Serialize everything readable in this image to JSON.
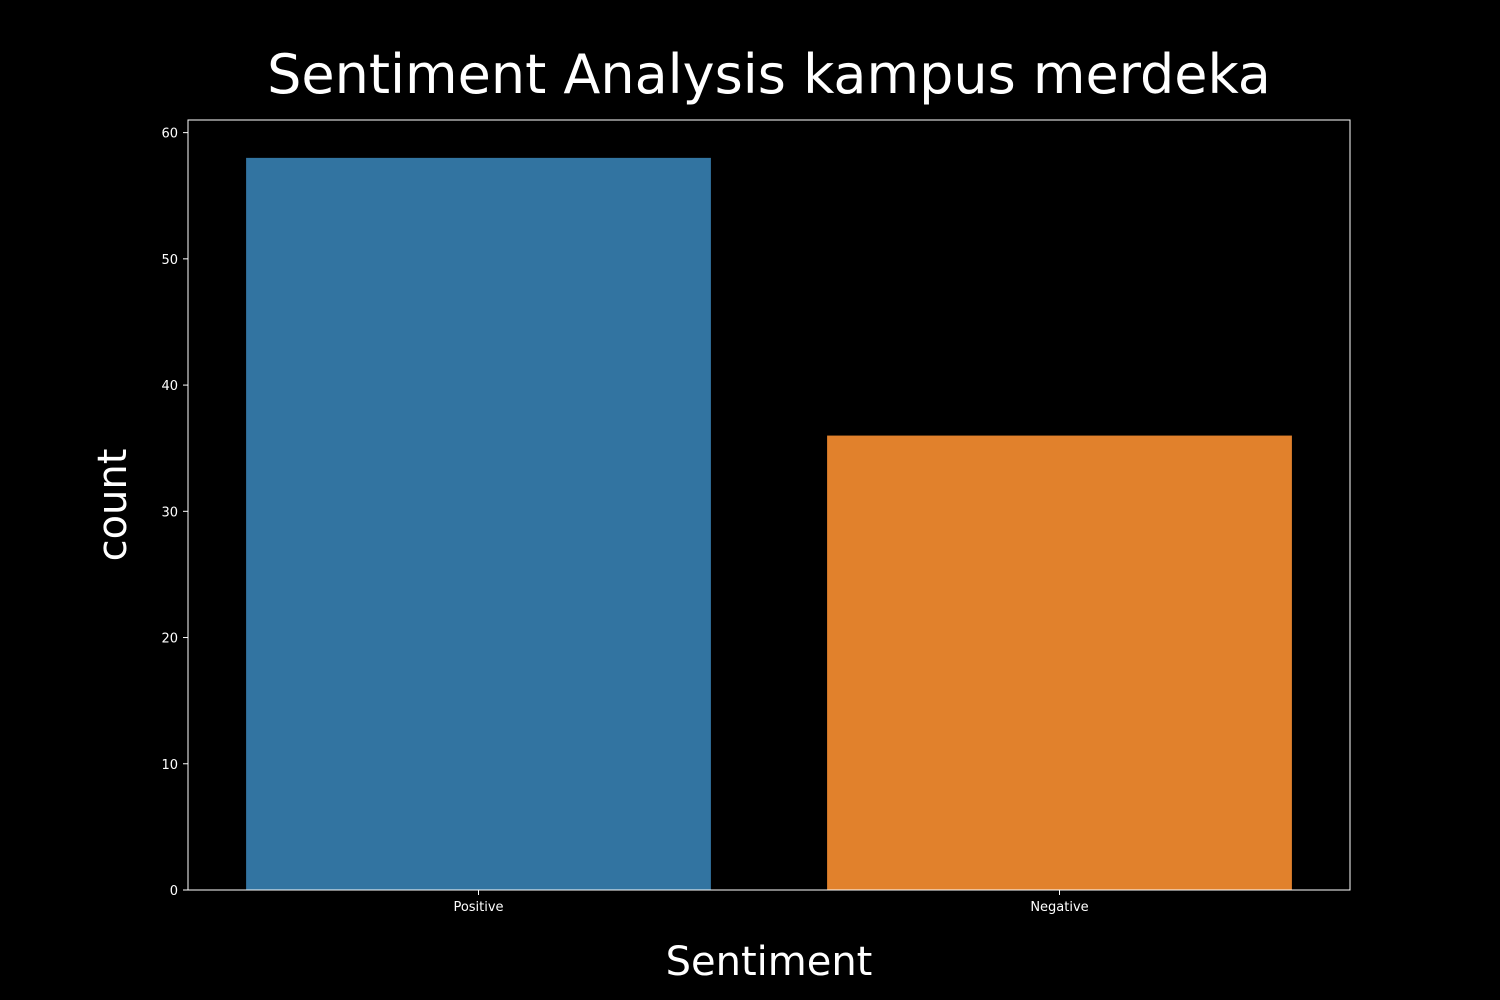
{
  "chart_data": {
    "type": "bar",
    "title": "Sentiment Analysis kampus merdeka",
    "xlabel": "Sentiment",
    "ylabel": "count",
    "categories": [
      "Positive",
      "Negative"
    ],
    "values": [
      58,
      36
    ],
    "colors": [
      "#3274a1",
      "#e1812c"
    ],
    "ylim": [
      0,
      61
    ],
    "yticks": [
      0,
      10,
      20,
      30,
      40,
      50,
      60
    ],
    "grid": false,
    "legend": "none",
    "background": "#000000",
    "axis_color": "#ffffff"
  }
}
